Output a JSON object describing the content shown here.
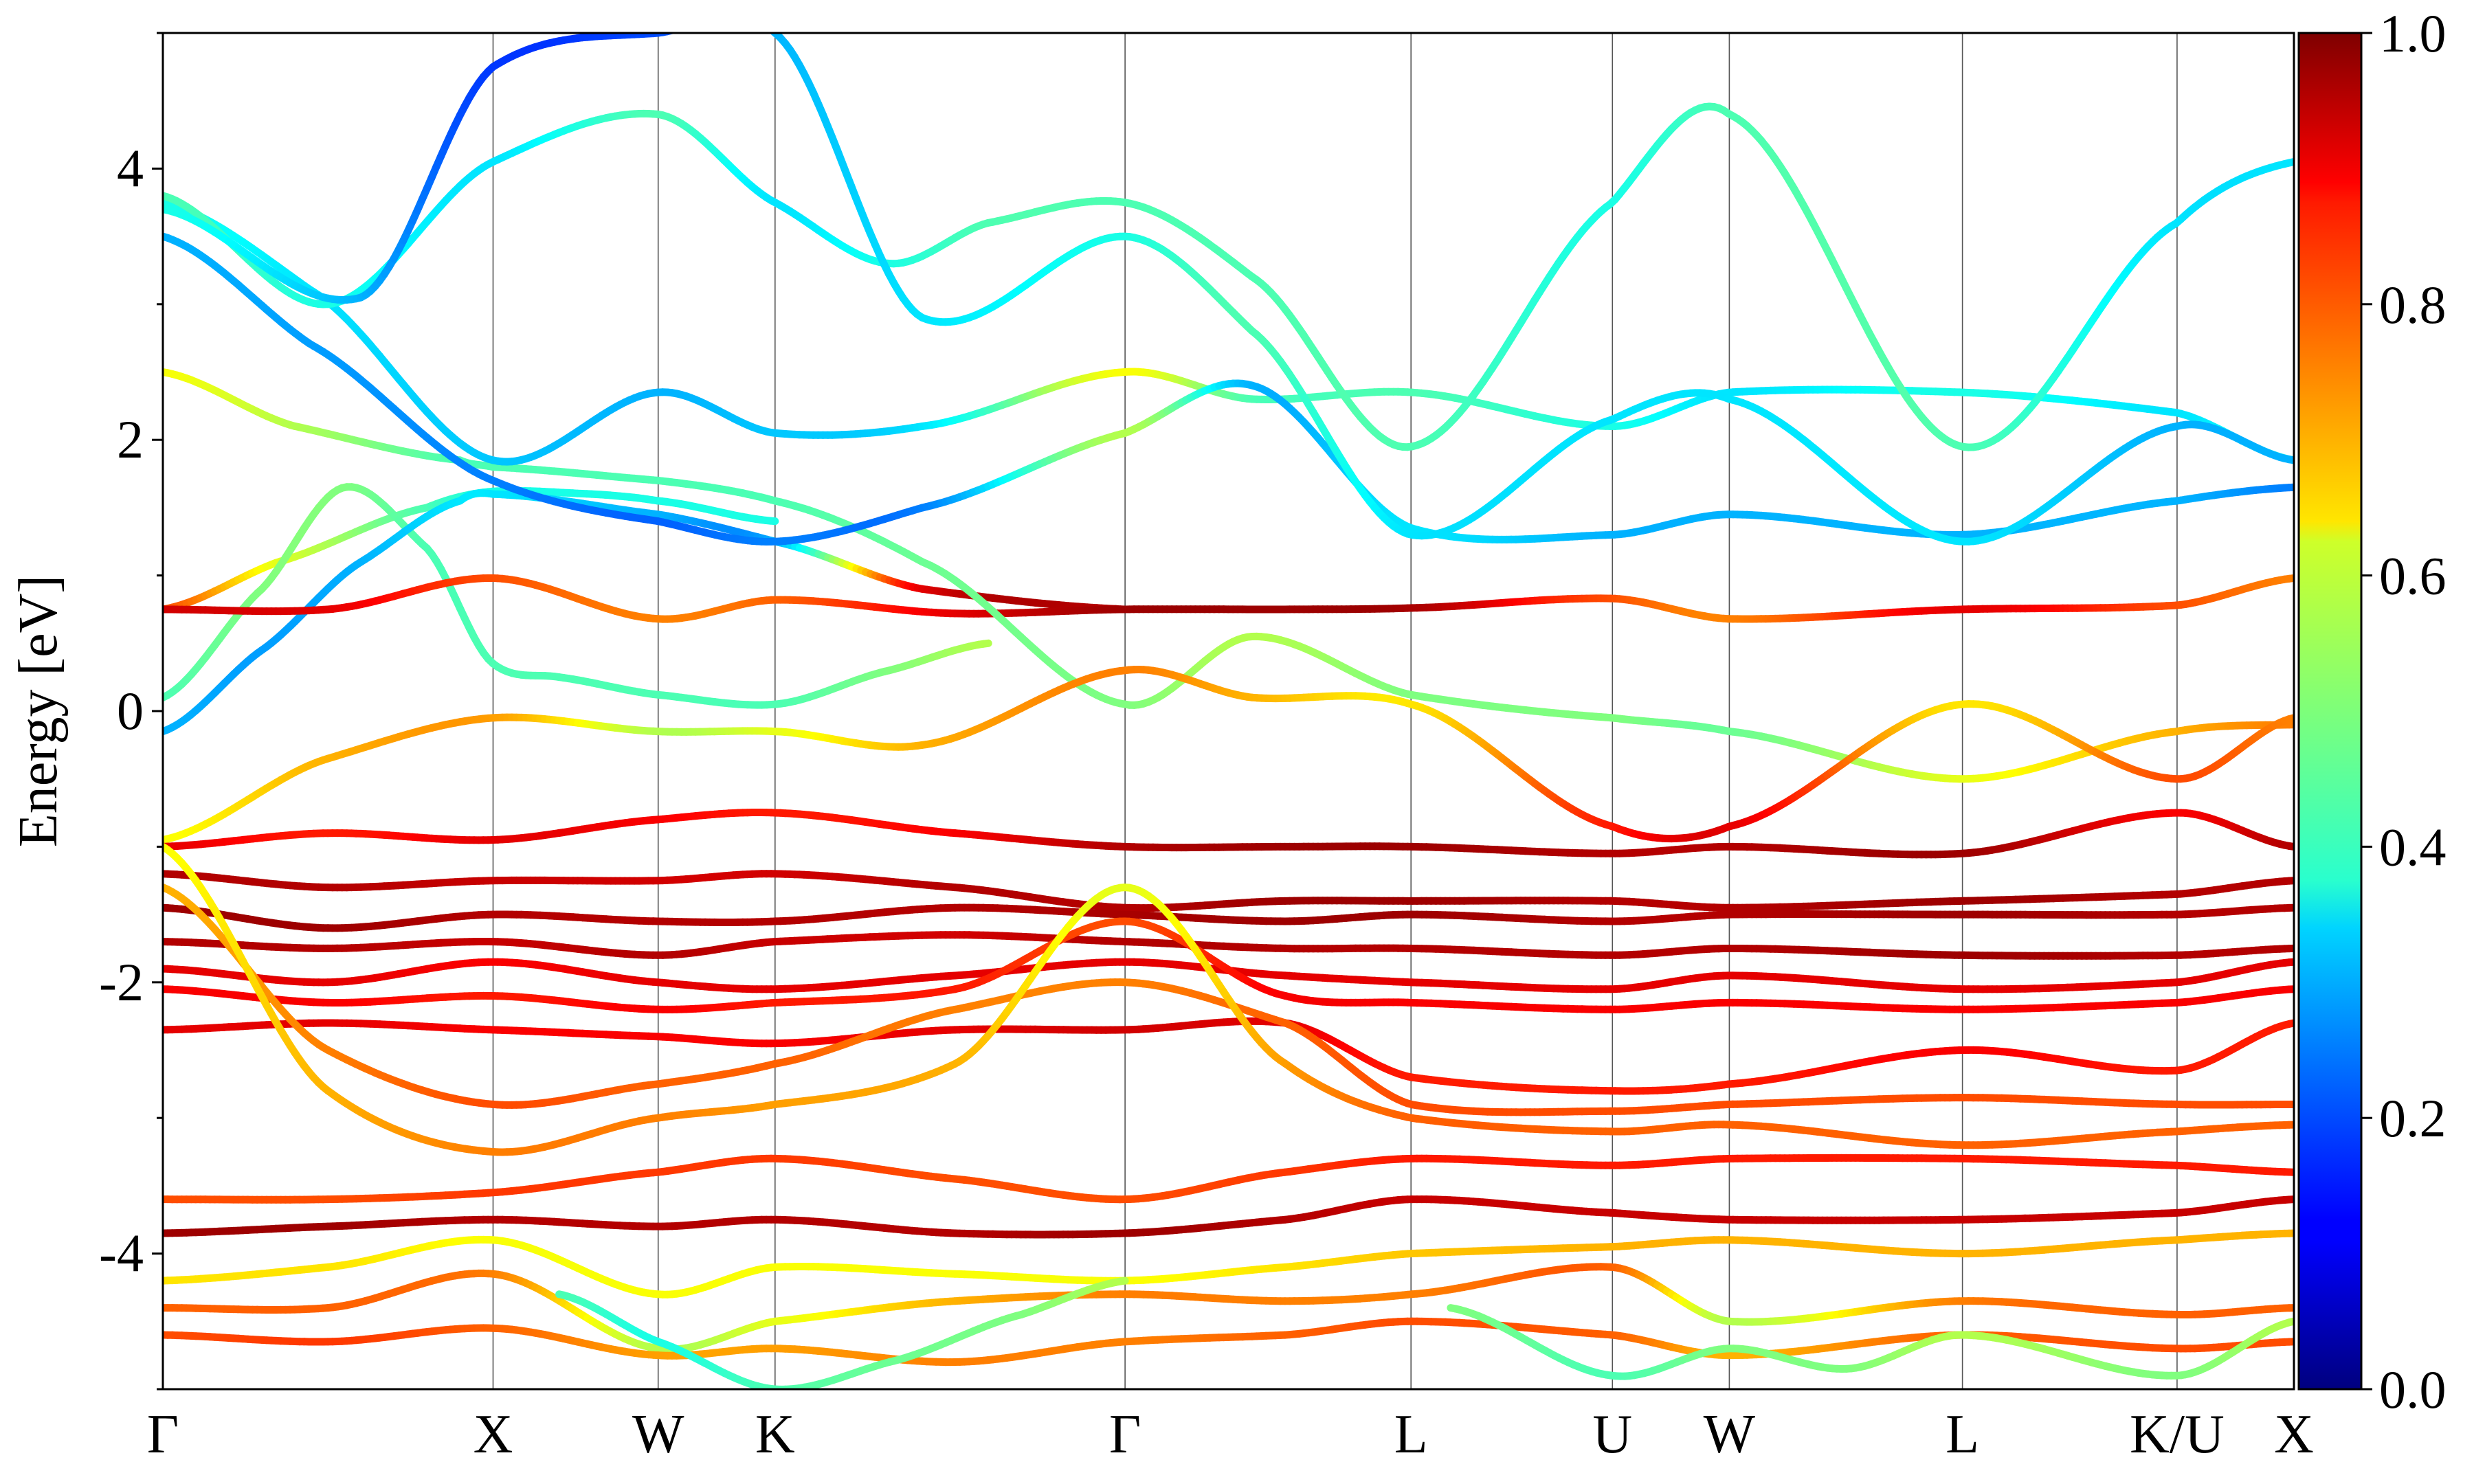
{
  "chart_data": {
    "type": "line",
    "title": "",
    "ylabel": "Energy [eV]",
    "ylim": [
      -5,
      5
    ],
    "yticks": [
      -4,
      -2,
      0,
      2,
      4
    ],
    "ytick_labels": [
      "-4",
      "-2",
      "0",
      "2",
      "4"
    ],
    "kpath": {
      "labels": [
        "Γ",
        "X",
        "W",
        "K",
        "Γ",
        "L",
        "U",
        "W",
        "L",
        "K/U",
        "X"
      ],
      "positions": [
        0.0,
        1.0,
        1.5,
        1.854,
        2.914,
        3.78,
        4.39,
        4.744,
        5.45,
        6.1,
        6.454
      ]
    },
    "colorbar": {
      "range": [
        0.0,
        1.0
      ],
      "ticks": [
        0.0,
        0.2,
        0.4,
        0.6,
        0.8,
        1.0
      ],
      "tick_labels": [
        "0.0",
        "0.2",
        "0.4",
        "0.6",
        "0.8",
        "1.0"
      ],
      "colormap": "jet"
    },
    "series": [
      {
        "k": [
          0,
          0.35,
          0.8,
          1.0,
          1.3,
          1.5,
          1.854
        ],
        "energy": [
          0.75,
          1.1,
          1.5,
          1.62,
          1.6,
          1.55,
          1.4
        ],
        "weight": [
          0.8,
          0.6,
          0.45,
          0.4,
          0.4,
          0.4,
          0.4
        ]
      },
      {
        "k": [
          0,
          0.3,
          0.55,
          0.8,
          1.0,
          1.2,
          1.5,
          1.854,
          2.2,
          2.5
        ],
        "energy": [
          0.1,
          0.9,
          1.65,
          1.2,
          0.35,
          0.25,
          0.12,
          0.05,
          0.3,
          0.5
        ],
        "weight": [
          0.45,
          0.5,
          0.5,
          0.45,
          0.45,
          0.45,
          0.45,
          0.45,
          0.5,
          0.55
        ]
      },
      {
        "k": [
          0,
          0.3,
          0.6,
          0.9,
          1.0,
          1.5,
          1.854,
          2.3,
          2.914
        ],
        "energy": [
          -0.15,
          0.45,
          1.1,
          1.55,
          1.6,
          1.45,
          1.25,
          0.9,
          0.75
        ],
        "weight": [
          0.3,
          0.28,
          0.3,
          0.35,
          0.35,
          0.3,
          0.3,
          0.9,
          0.95
        ]
      },
      {
        "k": [
          0,
          0.5,
          1.0,
          1.5,
          1.854,
          2.4,
          2.914,
          3.4,
          3.78,
          4.39,
          4.744,
          5.45,
          6.1,
          6.454
        ],
        "energy": [
          0.75,
          0.75,
          0.98,
          0.68,
          0.82,
          0.72,
          0.75,
          0.75,
          0.76,
          0.83,
          0.68,
          0.75,
          0.78,
          0.98
        ],
        "weight": [
          0.92,
          0.9,
          0.8,
          0.75,
          0.78,
          0.9,
          0.97,
          0.97,
          0.96,
          0.8,
          0.75,
          0.9,
          0.8,
          0.75
        ]
      },
      {
        "k": [
          0,
          0.4,
          0.9,
          1.0,
          1.5,
          1.854,
          2.3,
          2.914,
          3.3,
          3.78,
          4.39,
          4.744,
          5.45,
          6.1,
          6.454
        ],
        "energy": [
          2.5,
          2.1,
          1.85,
          1.8,
          1.7,
          1.55,
          1.1,
          0.05,
          0.55,
          0.12,
          -0.05,
          -0.15,
          -0.5,
          -0.15,
          -0.1
        ],
        "weight": [
          0.62,
          0.55,
          0.45,
          0.45,
          0.45,
          0.45,
          0.48,
          0.5,
          0.55,
          0.5,
          0.5,
          0.48,
          0.6,
          0.7,
          0.75
        ]
      },
      {
        "k": [
          0,
          0.45,
          1.0,
          1.5,
          1.854,
          2.3,
          2.914,
          3.3,
          3.78,
          4.39,
          4.744,
          5.45,
          6.1,
          6.454
        ],
        "energy": [
          3.75,
          3.1,
          1.85,
          2.35,
          2.05,
          2.1,
          2.5,
          2.3,
          2.35,
          2.1,
          2.35,
          2.35,
          2.2,
          1.85
        ],
        "weight": [
          0.4,
          0.35,
          0.32,
          0.3,
          0.32,
          0.35,
          0.62,
          0.45,
          0.45,
          0.4,
          0.35,
          0.4,
          0.35,
          0.4
        ]
      },
      {
        "k": [
          0,
          0.45,
          1.0,
          1.5,
          1.854,
          2.3,
          2.914,
          3.3,
          3.78,
          4.39,
          4.744,
          5.45,
          6.1,
          6.454
        ],
        "energy": [
          3.5,
          2.7,
          1.7,
          1.4,
          1.25,
          1.5,
          2.05,
          2.4,
          1.35,
          1.3,
          1.45,
          1.3,
          1.55,
          1.65
        ],
        "weight": [
          0.3,
          0.28,
          0.25,
          0.22,
          0.25,
          0.25,
          0.55,
          0.3,
          0.35,
          0.3,
          0.3,
          0.3,
          0.3,
          0.25
        ]
      },
      {
        "k": [
          0,
          0.5,
          1.0,
          1.5,
          1.854,
          2.2,
          2.5,
          2.914,
          3.3,
          3.78,
          4.39,
          4.744,
          5.45,
          6.1,
          6.454
        ],
        "energy": [
          3.8,
          3.0,
          4.05,
          4.4,
          3.75,
          3.3,
          3.6,
          3.75,
          3.2,
          1.95,
          3.75,
          4.4,
          1.95,
          3.6,
          4.05
        ],
        "weight": [
          0.45,
          0.4,
          0.35,
          0.45,
          0.35,
          0.4,
          0.45,
          0.45,
          0.45,
          0.45,
          0.4,
          0.45,
          0.45,
          0.35,
          0.35
        ]
      },
      {
        "k": [
          0,
          0.6,
          1.0,
          1.5,
          1.854,
          2.3,
          2.914,
          3.3,
          3.78,
          4.39,
          4.744,
          5.45,
          6.1,
          6.454
        ],
        "energy": [
          3.7,
          3.05,
          4.75,
          5.0,
          5.0,
          2.9,
          3.5,
          2.8,
          1.3,
          2.15,
          2.3,
          1.25,
          2.1,
          1.85
        ],
        "weight": [
          0.4,
          0.3,
          0.18,
          0.2,
          0.3,
          0.35,
          0.4,
          0.45,
          0.35,
          0.35,
          0.35,
          0.35,
          0.3,
          0.3
        ]
      },
      {
        "k": [
          0,
          0.5,
          1.0,
          1.5,
          1.854,
          2.3,
          2.914,
          3.3,
          3.78,
          4.39,
          4.744,
          5.45,
          6.1,
          6.454
        ],
        "energy": [
          -0.95,
          -0.35,
          -0.05,
          -0.15,
          -0.15,
          -0.25,
          0.3,
          0.1,
          0.05,
          -0.85,
          -0.85,
          0.05,
          -0.5,
          -0.05
        ],
        "weight": [
          0.62,
          0.7,
          0.72,
          0.55,
          0.6,
          0.7,
          0.75,
          0.7,
          0.65,
          0.85,
          0.9,
          0.65,
          0.8,
          0.75
        ]
      },
      {
        "k": [
          0,
          0.5,
          1.0,
          1.5,
          1.854,
          2.4,
          2.914,
          3.4,
          3.78,
          4.39,
          4.744,
          5.45,
          6.1,
          6.454
        ],
        "energy": [
          -1.0,
          -0.9,
          -0.95,
          -0.8,
          -0.75,
          -0.9,
          -1.0,
          -1.0,
          -1.0,
          -1.05,
          -1.0,
          -1.05,
          -0.75,
          -1.0
        ],
        "weight": [
          0.9,
          0.85,
          0.9,
          0.88,
          0.85,
          0.88,
          0.95,
          0.97,
          0.97,
          0.95,
          0.95,
          0.97,
          0.88,
          0.95
        ]
      },
      {
        "k": [
          0,
          0.5,
          1.0,
          1.5,
          1.854,
          2.4,
          2.914,
          3.4,
          3.78,
          4.39,
          4.744,
          5.45,
          6.1,
          6.454
        ],
        "energy": [
          -1.2,
          -1.3,
          -1.25,
          -1.25,
          -1.2,
          -1.3,
          -1.45,
          -1.4,
          -1.4,
          -1.4,
          -1.45,
          -1.4,
          -1.35,
          -1.25
        ],
        "weight": [
          0.95,
          0.95,
          0.93,
          0.92,
          0.92,
          0.95,
          0.95,
          0.97,
          0.97,
          0.95,
          0.95,
          0.97,
          0.95,
          0.95
        ]
      },
      {
        "k": [
          0,
          0.5,
          1.0,
          1.5,
          1.854,
          2.4,
          2.914,
          3.4,
          3.78,
          4.39,
          4.744,
          5.45,
          6.1,
          6.454
        ],
        "energy": [
          -1.45,
          -1.6,
          -1.5,
          -1.55,
          -1.55,
          -1.45,
          -1.5,
          -1.55,
          -1.5,
          -1.55,
          -1.5,
          -1.5,
          -1.5,
          -1.45
        ],
        "weight": [
          0.97,
          0.97,
          0.95,
          0.95,
          0.95,
          0.95,
          0.96,
          0.97,
          0.97,
          0.95,
          0.95,
          0.97,
          0.95,
          0.95
        ]
      },
      {
        "k": [
          0,
          0.5,
          1.0,
          1.5,
          1.854,
          2.4,
          2.914,
          3.4,
          3.78,
          4.39,
          4.744,
          5.45,
          6.1,
          6.454
        ],
        "energy": [
          -1.7,
          -1.75,
          -1.7,
          -1.8,
          -1.7,
          -1.65,
          -1.7,
          -1.75,
          -1.75,
          -1.8,
          -1.75,
          -1.8,
          -1.8,
          -1.75
        ],
        "weight": [
          0.95,
          0.95,
          0.93,
          0.95,
          0.93,
          0.92,
          0.95,
          0.95,
          0.95,
          0.95,
          0.95,
          0.97,
          0.95,
          0.95
        ]
      },
      {
        "k": [
          0,
          0.5,
          1.0,
          1.5,
          1.854,
          2.4,
          2.914,
          3.4,
          3.78,
          4.39,
          4.744,
          5.45,
          6.1,
          6.454
        ],
        "energy": [
          -1.9,
          -2.0,
          -1.85,
          -2.0,
          -2.05,
          -1.95,
          -1.85,
          -1.95,
          -2.0,
          -2.05,
          -1.95,
          -2.05,
          -2.0,
          -1.85
        ],
        "weight": [
          0.9,
          0.9,
          0.88,
          0.9,
          0.9,
          0.9,
          0.9,
          0.9,
          0.9,
          0.9,
          0.9,
          0.9,
          0.9,
          0.9
        ]
      },
      {
        "k": [
          0,
          0.5,
          1.0,
          1.5,
          1.854,
          2.4,
          2.914,
          3.4,
          3.78,
          4.39,
          4.744,
          5.45,
          6.1,
          6.454
        ],
        "energy": [
          -2.05,
          -2.15,
          -2.1,
          -2.2,
          -2.15,
          -2.05,
          -1.55,
          -2.1,
          -2.15,
          -2.2,
          -2.15,
          -2.2,
          -2.15,
          -2.05
        ],
        "weight": [
          0.88,
          0.88,
          0.85,
          0.88,
          0.85,
          0.85,
          0.8,
          0.88,
          0.88,
          0.88,
          0.88,
          0.88,
          0.88,
          0.88
        ]
      },
      {
        "k": [
          0,
          0.5,
          1.0,
          1.5,
          1.854,
          2.4,
          2.914,
          3.4,
          3.78,
          4.39,
          4.744,
          5.45,
          6.1,
          6.454
        ],
        "energy": [
          -2.35,
          -2.3,
          -2.35,
          -2.4,
          -2.45,
          -2.35,
          -2.35,
          -2.3,
          -2.7,
          -2.8,
          -2.75,
          -2.5,
          -2.65,
          -2.3
        ],
        "weight": [
          0.9,
          0.9,
          0.88,
          0.88,
          0.88,
          0.9,
          0.92,
          0.9,
          0.85,
          0.85,
          0.85,
          0.88,
          0.85,
          0.85
        ]
      },
      {
        "k": [
          0,
          0.5,
          1.0,
          1.5,
          1.854,
          2.4,
          2.914,
          3.4,
          3.78,
          4.39,
          4.744,
          5.45,
          6.1,
          6.454
        ],
        "energy": [
          -1.3,
          -2.5,
          -2.9,
          -2.75,
          -2.6,
          -2.2,
          -2.0,
          -2.3,
          -2.9,
          -2.95,
          -2.9,
          -2.85,
          -2.9,
          -2.9
        ],
        "weight": [
          0.7,
          0.75,
          0.8,
          0.78,
          0.78,
          0.75,
          0.75,
          0.78,
          0.8,
          0.8,
          0.8,
          0.8,
          0.8,
          0.8
        ]
      },
      {
        "k": [
          0,
          0.5,
          1.0,
          1.5,
          1.854,
          2.4,
          2.914,
          3.4,
          3.78,
          4.39,
          4.744,
          5.45,
          6.1,
          6.454
        ],
        "energy": [
          -1.0,
          -2.8,
          -3.25,
          -3.0,
          -2.9,
          -2.6,
          -1.3,
          -2.6,
          -3.0,
          -3.1,
          -3.05,
          -3.2,
          -3.1,
          -3.05
        ],
        "weight": [
          0.62,
          0.7,
          0.75,
          0.75,
          0.72,
          0.7,
          0.6,
          0.72,
          0.78,
          0.78,
          0.78,
          0.78,
          0.78,
          0.78
        ]
      },
      {
        "k": [
          0,
          0.5,
          1.0,
          1.5,
          1.854,
          2.4,
          2.914,
          3.4,
          3.78,
          4.39,
          4.744,
          5.45,
          6.1,
          6.454
        ],
        "energy": [
          -3.6,
          -3.6,
          -3.55,
          -3.4,
          -3.3,
          -3.45,
          -3.6,
          -3.4,
          -3.3,
          -3.35,
          -3.3,
          -3.3,
          -3.35,
          -3.4
        ],
        "weight": [
          0.8,
          0.8,
          0.82,
          0.82,
          0.82,
          0.8,
          0.8,
          0.82,
          0.85,
          0.85,
          0.85,
          0.85,
          0.85,
          0.85
        ]
      },
      {
        "k": [
          0,
          0.5,
          1.0,
          1.5,
          1.854,
          2.4,
          2.914,
          3.4,
          3.78,
          4.39,
          4.744,
          5.45,
          6.1,
          6.454
        ],
        "energy": [
          -3.85,
          -3.8,
          -3.75,
          -3.8,
          -3.75,
          -3.85,
          -3.85,
          -3.75,
          -3.6,
          -3.7,
          -3.75,
          -3.75,
          -3.7,
          -3.6
        ],
        "weight": [
          0.97,
          0.97,
          0.95,
          0.95,
          0.95,
          0.95,
          0.97,
          0.95,
          0.93,
          0.93,
          0.93,
          0.93,
          0.93,
          0.93
        ]
      },
      {
        "k": [
          0,
          0.5,
          1.0,
          1.5,
          1.854,
          2.4,
          2.914,
          3.4,
          3.78,
          4.39,
          4.744,
          5.45,
          6.1,
          6.454
        ],
        "energy": [
          -4.2,
          -4.1,
          -3.9,
          -4.3,
          -4.1,
          -4.15,
          -4.2,
          -4.1,
          -4.0,
          -3.95,
          -3.9,
          -4.0,
          -3.9,
          -3.85
        ],
        "weight": [
          0.65,
          0.65,
          0.62,
          0.62,
          0.62,
          0.62,
          0.62,
          0.65,
          0.68,
          0.7,
          0.7,
          0.7,
          0.7,
          0.7
        ]
      },
      {
        "k": [
          0,
          0.5,
          1.0,
          1.5,
          1.854,
          2.4,
          2.914,
          3.4,
          3.78,
          4.39,
          4.744,
          5.45,
          6.1,
          6.454
        ],
        "energy": [
          -4.4,
          -4.4,
          -4.15,
          -4.7,
          -4.5,
          -4.35,
          -4.3,
          -4.35,
          -4.3,
          -4.1,
          -4.5,
          -4.35,
          -4.45,
          -4.4
        ],
        "weight": [
          0.78,
          0.78,
          0.75,
          0.55,
          0.6,
          0.7,
          0.75,
          0.75,
          0.75,
          0.78,
          0.55,
          0.75,
          0.78,
          0.78
        ]
      },
      {
        "k": [
          0,
          0.5,
          1.0,
          1.5,
          1.854,
          2.4,
          2.914,
          3.4,
          3.78,
          4.39,
          4.744,
          5.45,
          6.1,
          6.454
        ],
        "energy": [
          -4.6,
          -4.65,
          -4.55,
          -4.75,
          -4.7,
          -4.8,
          -4.65,
          -4.6,
          -4.5,
          -4.6,
          -4.75,
          -4.6,
          -4.7,
          -4.65
        ],
        "weight": [
          0.8,
          0.82,
          0.78,
          0.72,
          0.72,
          0.75,
          0.75,
          0.78,
          0.8,
          0.78,
          0.7,
          0.78,
          0.8,
          0.8
        ]
      },
      {
        "k": [
          1.2,
          1.5,
          1.854,
          2.2,
          2.6,
          2.914
        ],
        "energy": [
          -4.3,
          -4.65,
          -5.0,
          -4.8,
          -4.45,
          -4.2
        ],
        "weight": [
          0.45,
          0.4,
          0.45,
          0.48,
          0.5,
          0.55
        ]
      },
      {
        "k": [
          3.9,
          4.39,
          4.744,
          5.1,
          5.45,
          6.1,
          6.454
        ],
        "energy": [
          -4.4,
          -4.9,
          -4.7,
          -4.85,
          -4.6,
          -4.9,
          -4.5
        ],
        "weight": [
          0.5,
          0.45,
          0.5,
          0.5,
          0.55,
          0.5,
          0.55
        ]
      }
    ]
  }
}
